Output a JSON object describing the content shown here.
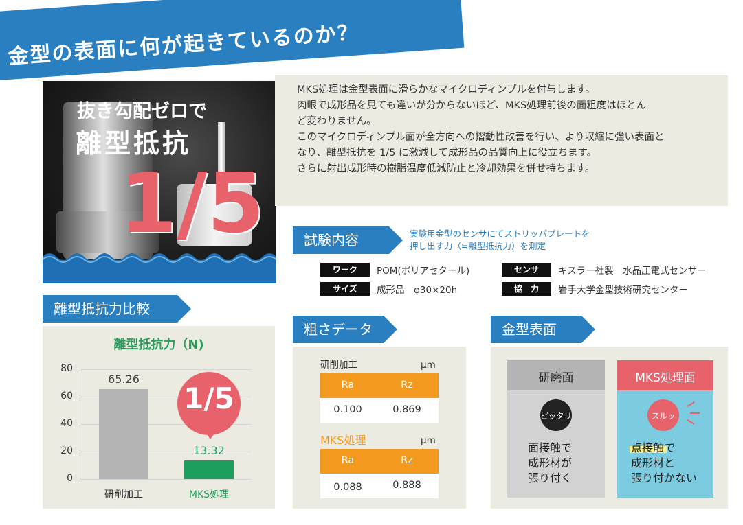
{
  "banner": {
    "title": "金型の表面に何が起きているのか？"
  },
  "hero": {
    "line1": "抜き勾配ゼロで",
    "line2": "離型抵抗",
    "fraction": "1/5"
  },
  "description": {
    "lines": [
      "MKS処理は金型表面に滑らかなマイクロディンプルを付与します。",
      "肉眼で成形品を見ても違いが分からないほど、MKS処理前後の面粗度はほとん",
      "ど変わりません。",
      "このマイクロディンプル面が全方向への摺動性改善を行い、より収縮に強い表面と",
      "なり、離型抵抗を 1/5 に激減して成形品の品質向上に役立ちます。",
      "さらに射出成形時の樹脂温度低減防止と冷却効果を併せ持ちます。"
    ]
  },
  "test": {
    "label": "試験内容",
    "note_line1": "実験用金型のセンサにてストリッパプレートを",
    "note_line2": "押し出す力（≒離型抵抗力）を測定",
    "rows": [
      {
        "key": "ワーク",
        "value": "POM(ポリアセタール)"
      },
      {
        "key": "サイズ",
        "value": "成形品　φ30×20h"
      },
      {
        "key": "センサ",
        "value": "キスラー社製　水晶圧電式センサー"
      },
      {
        "key": "協　力",
        "value": "岩手大学金型技術研究センター"
      }
    ]
  },
  "comparison": {
    "label": "離型抵抗力比較",
    "badge": "1/5"
  },
  "chart_data": {
    "type": "bar",
    "title": "離型抵抗力（N)",
    "categories": [
      "研削加工",
      "MKS処理"
    ],
    "values": [
      65.26,
      13.32
    ],
    "value_labels": [
      "65.26",
      "13.32"
    ],
    "ylim": [
      0,
      80
    ],
    "yticks": [
      "80",
      "60",
      "40",
      "20",
      "0"
    ],
    "colors": [
      "#b4b4b4",
      "#1e9e5c"
    ],
    "grid": true
  },
  "roughness": {
    "label": "粗さデータ",
    "unit": "μm",
    "grinding": {
      "title": "研削加工",
      "ra_label": "Ra",
      "rz_label": "Rz",
      "ra": "0.100",
      "rz": "0.869"
    },
    "mks": {
      "title": "MKS処理",
      "ra_label": "Ra",
      "rz_label": "Rz",
      "ra": "0.088",
      "rz": "0.888"
    }
  },
  "surface": {
    "label": "金型表面",
    "left": {
      "title": "研磨面",
      "bubble": "ピッタリ",
      "lines": [
        "面接触で",
        "成形材が",
        "張り付く"
      ]
    },
    "right": {
      "title": "MKS処理面",
      "bubble": "スルッ",
      "lines": [
        "点接触で",
        "成形材と",
        "張り付かない"
      ]
    }
  },
  "colors": {
    "blue": "#2a7fc1",
    "orange": "#f39a1e",
    "pink": "#e8626c",
    "green": "#1e9e5c",
    "beige": "#ecebe2"
  }
}
